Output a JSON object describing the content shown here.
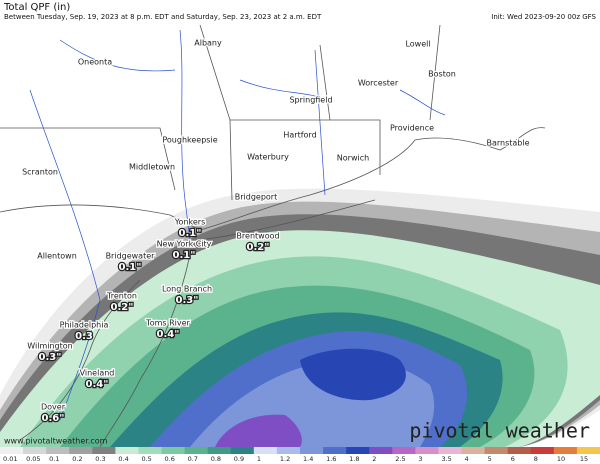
{
  "header": {
    "title": "Total QPF (in)",
    "subtitle": "Between Tuesday, Sep. 19, 2023 at 8 p.m. EDT and Saturday, Sep. 23, 2023 at 2 a.m. EDT",
    "init": "Init: Wed 2023-09-20 00z GFS"
  },
  "cities": [
    {
      "name": "Albany"
    },
    {
      "name": "Oneonta"
    },
    {
      "name": "Lowell"
    },
    {
      "name": "Worcester"
    },
    {
      "name": "Boston"
    },
    {
      "name": "Springfield"
    },
    {
      "name": "Poughkeepsie"
    },
    {
      "name": "Hartford"
    },
    {
      "name": "Providence"
    },
    {
      "name": "Barnstable"
    },
    {
      "name": "Middletown"
    },
    {
      "name": "Waterbury"
    },
    {
      "name": "Norwich"
    },
    {
      "name": "Scranton"
    },
    {
      "name": "Bridgeport"
    },
    {
      "name": "Yonkers",
      "value": "0.1\""
    },
    {
      "name": "Brentwood",
      "value": "0.2\""
    },
    {
      "name": "New York City",
      "value": "0.1\""
    },
    {
      "name": "Bridgewater",
      "value": "0.1\""
    },
    {
      "name": "Allentown"
    },
    {
      "name": "Trenton",
      "value": "0.2\""
    },
    {
      "name": "Long Branch",
      "value": "0.3\""
    },
    {
      "name": "Philadelphia",
      "value": "0.3"
    },
    {
      "name": "Toms River",
      "value": "0.4\""
    },
    {
      "name": "Wilmington",
      "value": "0.3\""
    },
    {
      "name": "Vineland",
      "value": "0.4\""
    },
    {
      "name": "Dover",
      "value": "0.6\""
    }
  ],
  "colorbar": {
    "ticks": [
      0.01,
      0.05,
      0.1,
      0.2,
      0.3,
      0.4,
      0.5,
      0.6,
      0.7,
      0.8,
      0.9,
      1,
      1.2,
      1.4,
      1.6,
      1.8,
      2,
      2.5,
      3,
      3.5,
      4,
      5,
      6,
      8,
      10,
      15
    ],
    "colors": [
      "#f0f0f0",
      "#d6d6d6",
      "#bdbdbd",
      "#a0a0a0",
      "#808080",
      "#c8ecd4",
      "#a3dcb8",
      "#7dc9a0",
      "#5bb38e",
      "#3f9b86",
      "#2c8386",
      "#d7e0f5",
      "#aabce8",
      "#7d96d9",
      "#4f6fcb",
      "#2746b4",
      "#7f4ec4",
      "#b569c5",
      "#d690c8",
      "#e8b5d5",
      "#d9b39f",
      "#c48a6f",
      "#b35e4a",
      "#c93c3c",
      "#e57d3c",
      "#f3c74b"
    ]
  },
  "footer": {
    "url": "www.pivotaltweather.com",
    "brand": "pivotal weather"
  }
}
